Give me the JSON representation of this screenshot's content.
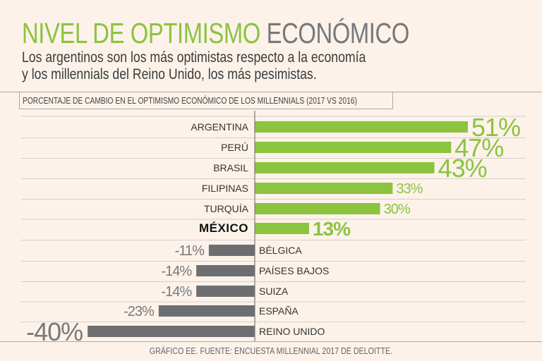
{
  "header": {
    "title_green": "NIVEL DE OPTIMISMO",
    "title_grey": "ECONÓMICO",
    "subtitle_line1": "Los argentinos son los más optimistas respecto a la economía",
    "subtitle_line2": "y los millennials del Reino Unido, los más pesimistas."
  },
  "footer": "GRÁFICO EE. FUENTE: ENCUESTA MILLENNIAL 2017 DE DELOITTE.",
  "colors": {
    "positive": "#8cc33f",
    "negative": "#6d6e71",
    "highlight_label": "#111111",
    "background": "#fcf2ea"
  },
  "chart_data": {
    "type": "bar",
    "orientation": "horizontal",
    "title": "PORCENTAJE DE CAMBIO EN EL OPTIMISMO ECONÓMICO DE LOS MILLENNIALS (2017 VS 2016)",
    "categories": [
      "ARGENTINA",
      "PERÚ",
      "BRASIL",
      "FILIPINAS",
      "TURQUÍA",
      "MÉXICO",
      "BÉLGICA",
      "PAÍSES BAJOS",
      "SUIZA",
      "ESPAÑA",
      "REINO UNIDO"
    ],
    "values": [
      51,
      47,
      43,
      33,
      30,
      13,
      -11,
      -14,
      -14,
      -23,
      -40
    ],
    "value_labels": [
      "51%",
      "47%",
      "43%",
      "33%",
      "30%",
      "13%",
      "-11%",
      "-14%",
      "-14%",
      "-23%",
      "-40%"
    ],
    "highlight": "MÉXICO",
    "xlabel": "",
    "ylabel": "",
    "xlim": [
      -40,
      51
    ],
    "unit": "%"
  }
}
